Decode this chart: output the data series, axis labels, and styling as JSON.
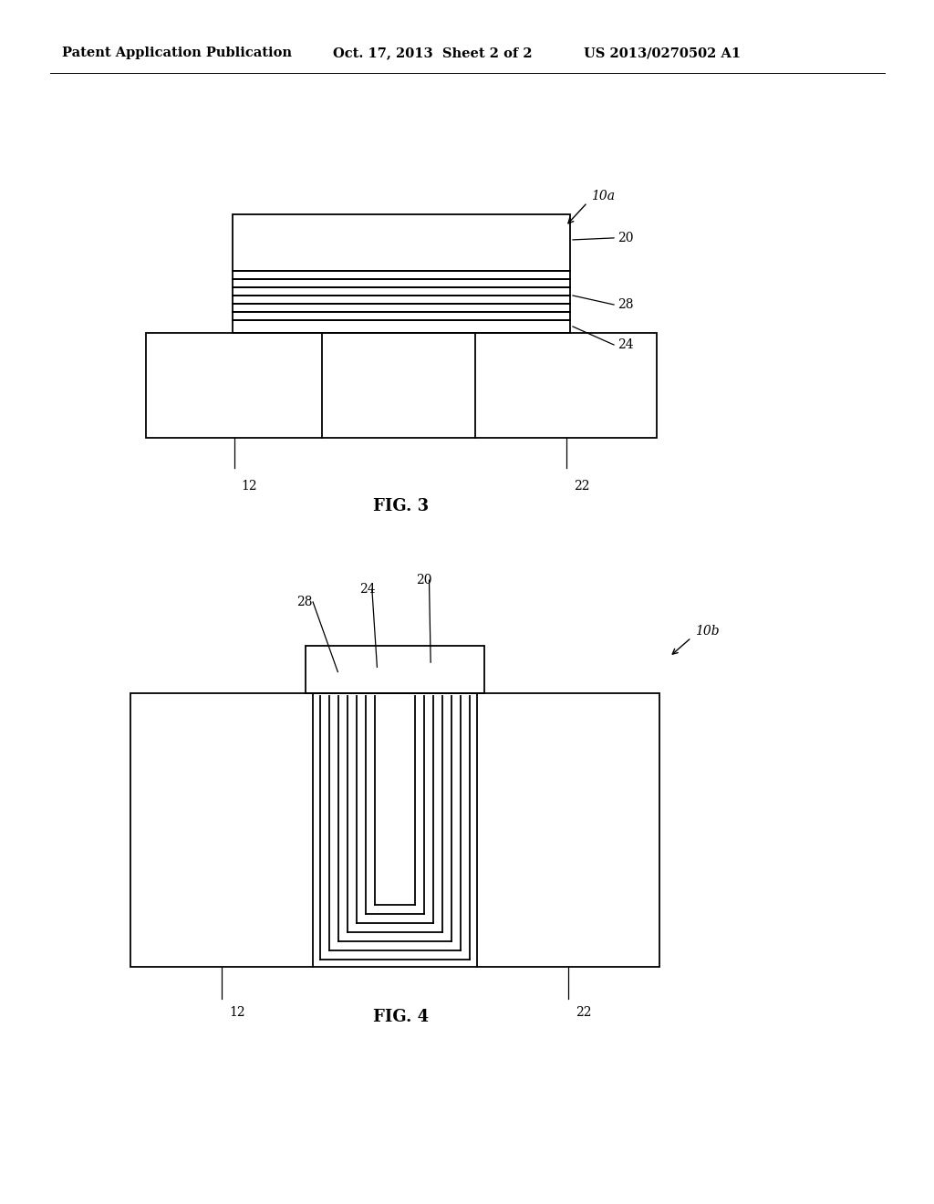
{
  "header_left": "Patent Application Publication",
  "header_middle": "Oct. 17, 2013  Sheet 2 of 2",
  "header_right": "US 2013/0270502 A1",
  "fig3_label": "FIG. 3",
  "fig4_label": "FIG. 4",
  "bg_color": "#ffffff",
  "line_color": "#000000"
}
